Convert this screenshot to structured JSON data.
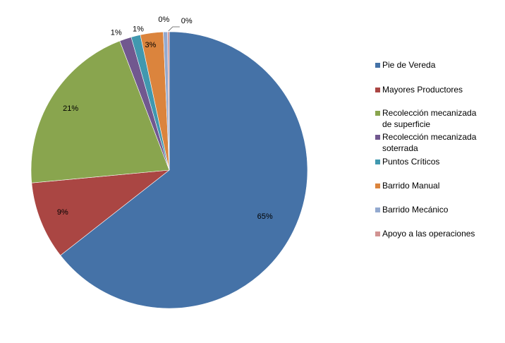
{
  "chart_data": {
    "type": "pie",
    "legend_position": "right",
    "categories": [
      "Pie de Vereda",
      "Mayores Productores",
      "Recolección mecanizada de superficie",
      "Recolección mecanizada soterrada",
      "Puntos Críticos",
      "Barrido Manual",
      "Barrido Mecánico",
      "Apoyo a las operaciones"
    ],
    "legend_lines": [
      [
        "Pie de Vereda"
      ],
      [
        "Mayores Productores"
      ],
      [
        "Recolección mecanizada",
        "de superficie"
      ],
      [
        "Recolección mecanizada",
        "soterrada"
      ],
      [
        "Puntos Críticos"
      ],
      [
        "Barrido Manual"
      ],
      [
        "Barrido Mecánico"
      ],
      [
        "Apoyo a las operaciones"
      ]
    ],
    "values": [
      65.2,
      9.2,
      20.9,
      1.4,
      1.1,
      2.7,
      0.5,
      0.2
    ],
    "data_labels": [
      "65%",
      "9%",
      "21%",
      "1%",
      "1%",
      "3%",
      "0%",
      "0%"
    ],
    "colors": [
      "#4572A7",
      "#AA4643",
      "#89A54E",
      "#71588F",
      "#4198AF",
      "#DB843D",
      "#93A9CF",
      "#D19392"
    ],
    "start_angle": "12 o'clock",
    "direction": "clockwise"
  }
}
